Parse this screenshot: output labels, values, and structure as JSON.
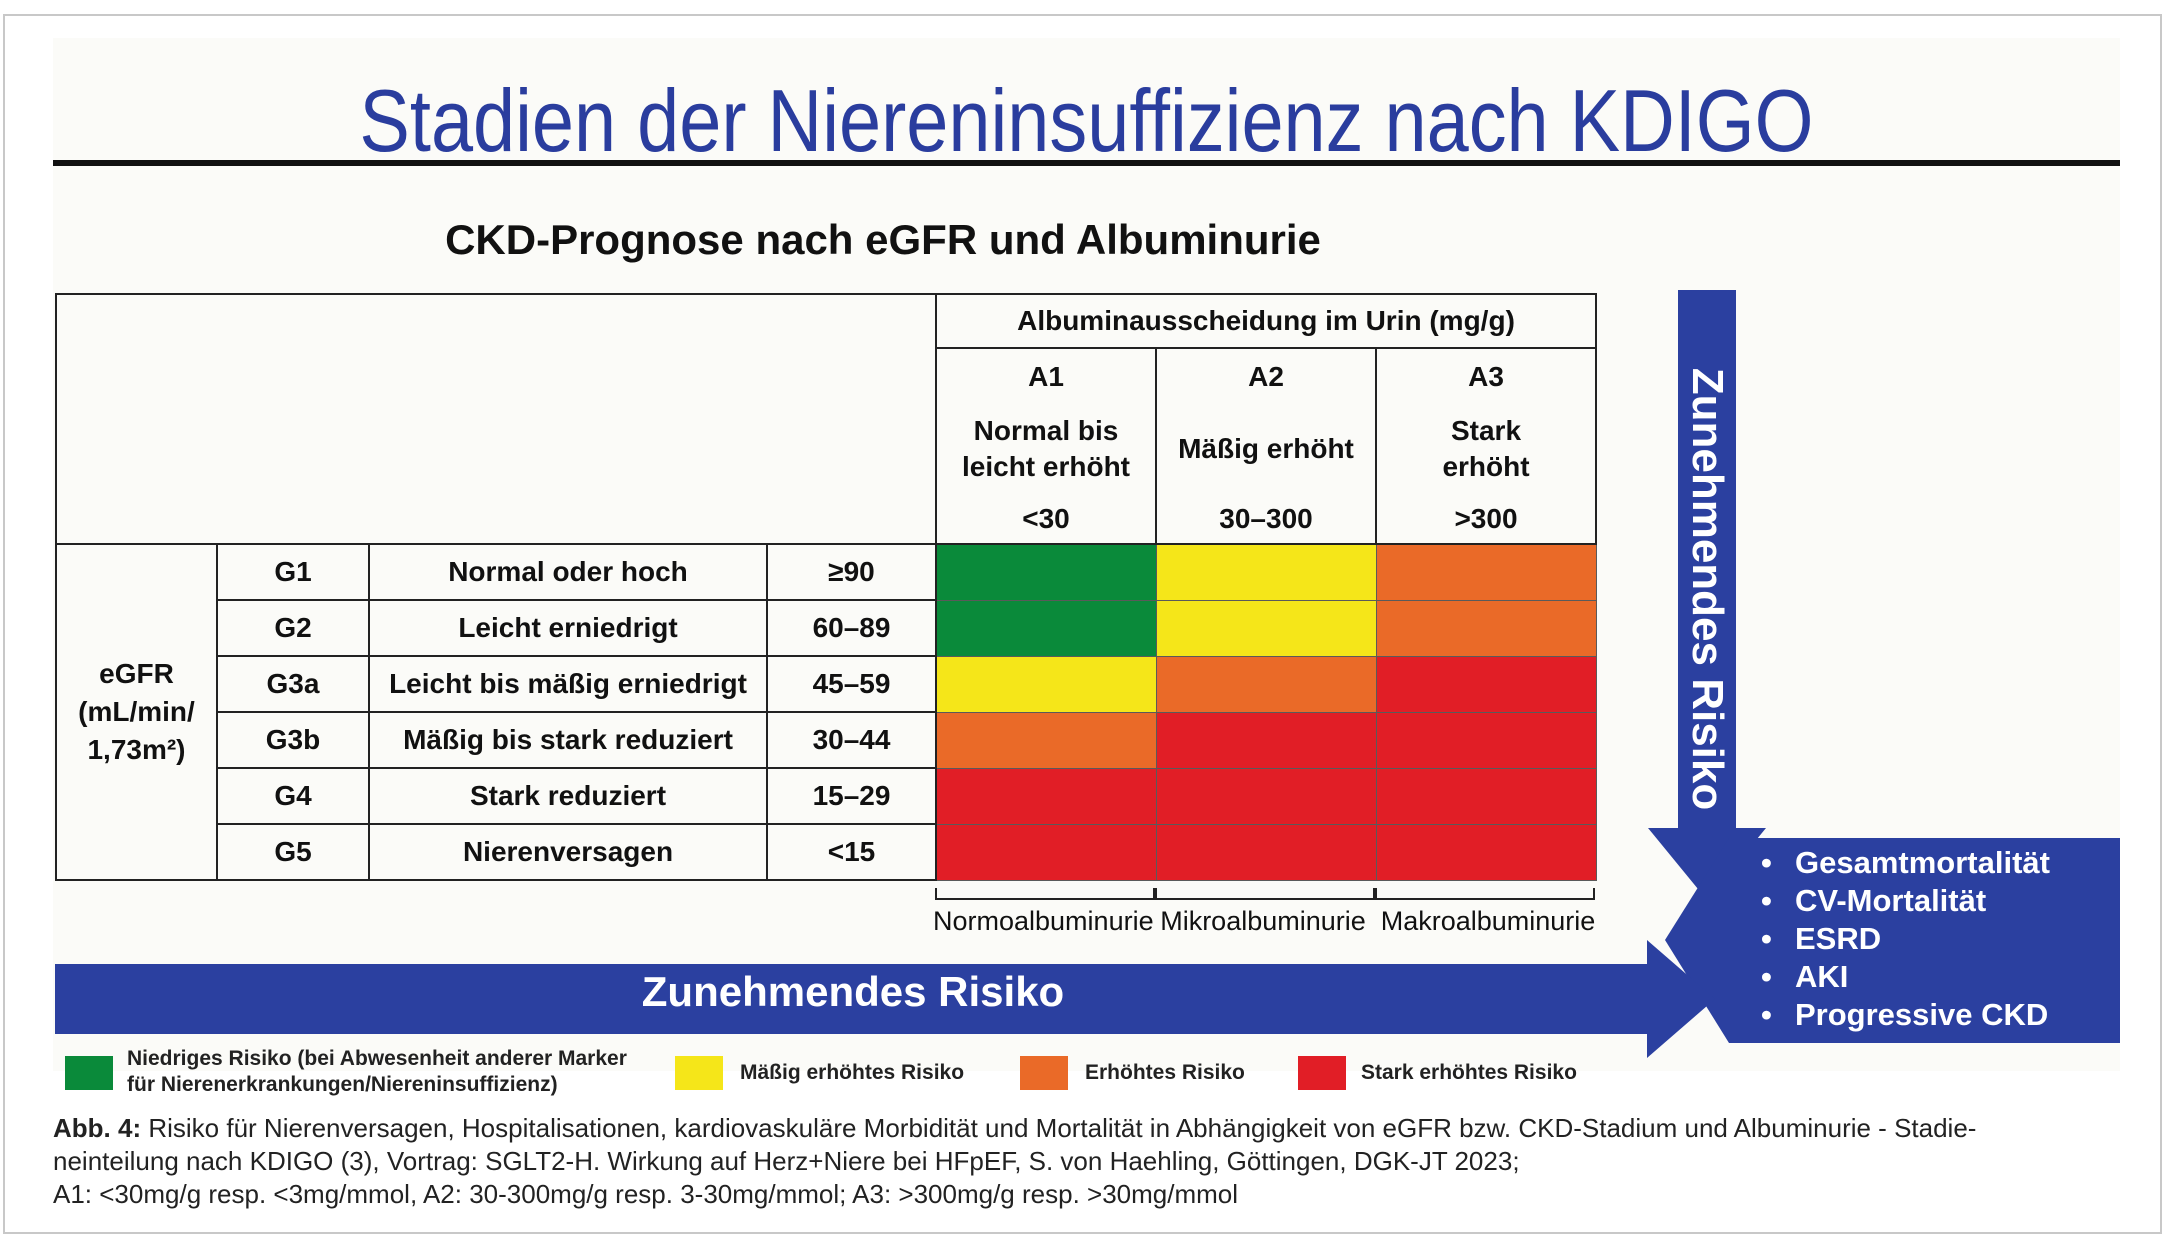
{
  "title": "Stadien der Niereninsuffizienz nach KDIGO",
  "subtitle": "CKD-Prognose nach eGFR und Albuminurie",
  "table": {
    "albumin_header": "Albuminausscheidung im Urin (mg/g)",
    "egfr_label_line1": "eGFR",
    "egfr_label_line2": "(mL/min/",
    "egfr_label_line3": "1,73m²)",
    "columns": [
      {
        "code": "A1",
        "desc_line1": "Normal bis",
        "desc_line2": "leicht erhöht",
        "range": "<30"
      },
      {
        "code": "A2",
        "desc_line1": "Mäßig erhöht",
        "desc_line2": "",
        "range": "30–300"
      },
      {
        "code": "A3",
        "desc_line1": "Stark",
        "desc_line2": "erhöht",
        "range": ">300"
      }
    ],
    "rows": [
      {
        "stage": "G1",
        "desc": "Normal oder hoch",
        "range": "≥90",
        "risk": [
          "green",
          "yellow",
          "orange"
        ]
      },
      {
        "stage": "G2",
        "desc": "Leicht erniedrigt",
        "range": "60–89",
        "risk": [
          "green",
          "yellow",
          "orange"
        ]
      },
      {
        "stage": "G3a",
        "desc": "Leicht bis mäßig erniedrigt",
        "range": "45–59",
        "risk": [
          "yellow",
          "orange",
          "red"
        ]
      },
      {
        "stage": "G3b",
        "desc": "Mäßig bis stark reduziert",
        "range": "30–44",
        "risk": [
          "orange",
          "red",
          "red"
        ]
      },
      {
        "stage": "G4",
        "desc": "Stark reduziert",
        "range": "15–29",
        "risk": [
          "red",
          "red",
          "red"
        ]
      },
      {
        "stage": "G5",
        "desc": "Nierenversagen",
        "range": "<15",
        "risk": [
          "red",
          "red",
          "red"
        ]
      }
    ],
    "below_labels": [
      "Normoalbuminurie",
      "Mikroalbuminurie",
      "Makroalbuminurie"
    ]
  },
  "arrows": {
    "vertical_label": "Zunehmendes Risiko",
    "horizontal_label": "Zunehmendes Risiko"
  },
  "outcomes": [
    "Gesamtmortalität",
    "CV-Mortalität",
    "ESRD",
    "AKI",
    "Progressive CKD"
  ],
  "legend": {
    "green_line1": "Niedriges Risiko (bei Abwesenheit anderer Marker",
    "green_line2": "für Nierenerkrankungen/Niereninsuffizienz)",
    "yellow": "Mäßig erhöhtes  Risiko",
    "orange": "Erhöhtes Risiko",
    "red": "Stark erhöhtes Risiko"
  },
  "colors": {
    "title_blue": "#2a3d9e",
    "arrow_blue": "#2b40a0",
    "green": "#0a8a3a",
    "yellow": "#f5e619",
    "orange": "#ea6a28",
    "red": "#e11e26"
  },
  "caption": {
    "label": "Abb. 4:",
    "line1": " Risiko für Nierenversagen, Hospitalisationen, kardiovaskuläre Morbidität und Mortalität in Abhängigkeit von eGFR bzw. CKD-Stadium und Albuminurie - Stadie-",
    "line2": "neinteilung nach KDIGO (3), Vortrag: SGLT2-H. Wirkung auf Herz+Niere bei HFpEF, S. von Haehling, Göttingen, DGK-JT 2023;",
    "line3": "A1: <30mg/g resp. <3mg/mmol, A2: 30-300mg/g resp. 3-30mg/mmol; A3: >300mg/g resp. >30mg/mmol"
  }
}
